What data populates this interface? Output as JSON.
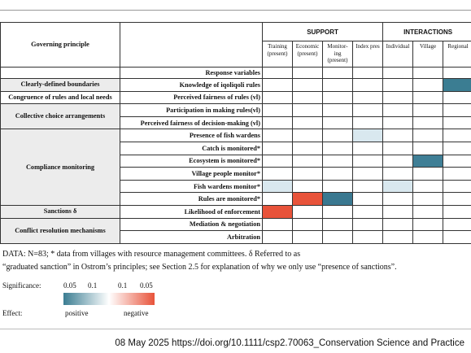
{
  "table": {
    "header_left": "Governing principle",
    "group_headers": [
      "SUPPORT",
      "INTERACTIONS"
    ],
    "columns": [
      "Training\n(present)",
      "Economic\n(present)",
      "Monitor-\ning\n(present)",
      "Index pres",
      "Individual",
      "Village",
      "Regional"
    ],
    "response_header": "Response variables",
    "groups": [
      {
        "principle": "Clearly-defined boundaries",
        "rows": [
          {
            "variable": "Knowledge of iqoliqoli rules",
            "cells": [
              null,
              null,
              null,
              null,
              null,
              null,
              "#3b7d92"
            ]
          }
        ]
      },
      {
        "principle": "Congruence of rules and local needs",
        "rows": [
          {
            "variable": "Perceived fairness of rules (vl)",
            "cells": [
              null,
              null,
              null,
              null,
              null,
              null,
              null
            ]
          }
        ]
      },
      {
        "principle": "Collective choice arrangements",
        "rows": [
          {
            "variable": "Participation in making rules(vl)",
            "cells": [
              null,
              null,
              null,
              null,
              null,
              null,
              null
            ]
          },
          {
            "variable": "Perceived fairness of decision-making (vl)",
            "cells": [
              null,
              null,
              null,
              null,
              null,
              null,
              null
            ]
          }
        ]
      },
      {
        "principle": "Compliance monitoring",
        "rows": [
          {
            "variable": "Presence of fish wardens",
            "cells": [
              null,
              null,
              null,
              "#d9e8ef",
              null,
              null,
              null
            ]
          },
          {
            "variable": "Catch is monitored*",
            "cells": [
              null,
              null,
              null,
              null,
              null,
              null,
              null
            ]
          },
          {
            "variable": "Ecosystem is monitored*",
            "cells": [
              null,
              null,
              null,
              null,
              null,
              "#3f7f96",
              null
            ]
          },
          {
            "variable": "Village people monitor*",
            "cells": [
              null,
              null,
              null,
              null,
              null,
              null,
              null
            ]
          },
          {
            "variable": "Fish wardens monitor*",
            "cells": [
              "#d9e8ef",
              null,
              null,
              null,
              "#d9e8ef",
              null,
              null
            ]
          },
          {
            "variable": "Rules are monitored*",
            "cells": [
              null,
              "#e8533a",
              "#3a7890",
              null,
              null,
              null,
              null
            ]
          }
        ]
      },
      {
        "principle": "Sanctions δ",
        "rows": [
          {
            "variable": "Likelihood of enforcement",
            "cells": [
              "#e8533a",
              null,
              null,
              null,
              null,
              null,
              null
            ]
          }
        ]
      },
      {
        "principle": "Conflict resolution mechanisms",
        "rows": [
          {
            "variable": "Mediation & negotiation",
            "cells": [
              null,
              null,
              null,
              null,
              null,
              null,
              null
            ]
          },
          {
            "variable": "Arbitration",
            "cells": [
              null,
              null,
              null,
              null,
              null,
              null,
              null
            ]
          }
        ]
      }
    ]
  },
  "note": [
    "DATA: N=83; * data from villages with resource management committees. δ Referred to as",
    "“graduated sanction” in Ostrom’s principles; see Section 2.5 for explanation of why we only use “presence of sanctions”."
  ],
  "legend": {
    "significance": "Significance:",
    "levels": [
      "0.05",
      "0.1",
      "0.1",
      "0.05"
    ],
    "effect": "Effect:",
    "positive": "positive",
    "negative": "negative",
    "colors": [
      "#3b7d92",
      "#ffffff",
      "#e8533a"
    ]
  },
  "footer": "08 May 2025 https://doi.org/10.1111/csp2.70063_Conservation Science and Practice"
}
